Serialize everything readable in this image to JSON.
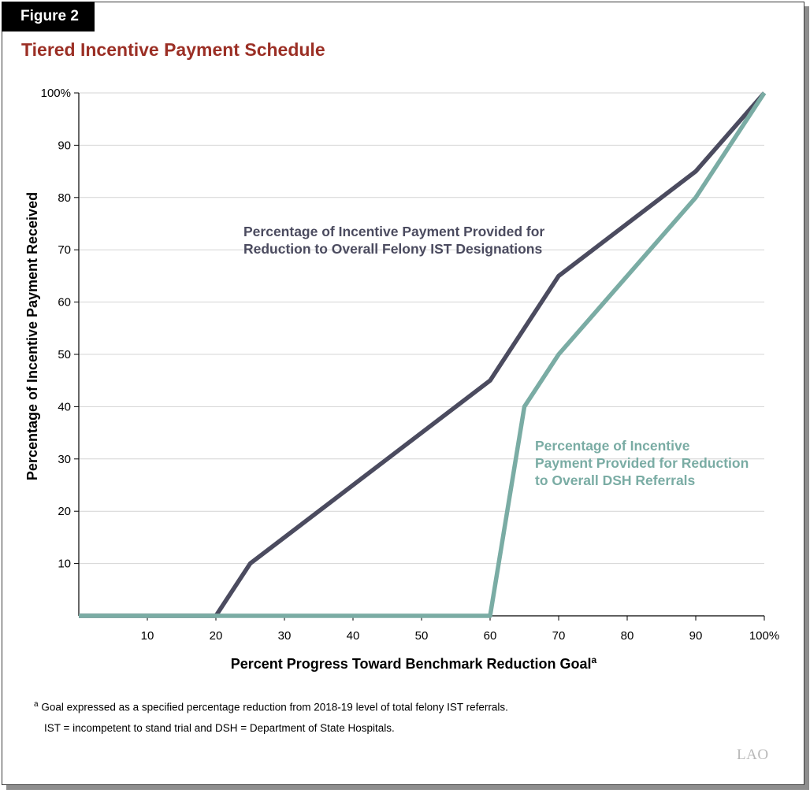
{
  "figure_label": "Figure 2",
  "chart_data": {
    "type": "line",
    "title": "Tiered Incentive Payment Schedule",
    "xlabel": "Percent Progress Toward Benchmark Reduction Goal",
    "xlabel_superscript": "a",
    "ylabel": "Percentage of Incentive Payment Received",
    "xlim": [
      0,
      100
    ],
    "ylim": [
      0,
      100
    ],
    "x_ticks": [
      10,
      20,
      30,
      40,
      50,
      60,
      70,
      80,
      90,
      100
    ],
    "x_tick_labels": [
      "10",
      "20",
      "30",
      "40",
      "50",
      "60",
      "70",
      "80",
      "90",
      "100%"
    ],
    "y_ticks": [
      10,
      20,
      30,
      40,
      50,
      60,
      70,
      80,
      90,
      100
    ],
    "y_tick_labels": [
      "10",
      "20",
      "30",
      "40",
      "50",
      "60",
      "70",
      "80",
      "90",
      "100%"
    ],
    "grid": true,
    "series": [
      {
        "name": "Percentage of Incentive Payment Provided for Reduction to Overall Felony IST Designations",
        "label_lines": [
          "Percentage of Incentive Payment Provided for",
          "Reduction to Overall Felony IST Designations"
        ],
        "color": "#4b4b5f",
        "x": [
          0,
          20,
          25,
          60,
          70,
          90,
          100
        ],
        "y": [
          0,
          0,
          10,
          45,
          65,
          85,
          100
        ]
      },
      {
        "name": "Percentage of Incentive Payment Provided for Reduction to Overall DSH Referrals",
        "label_lines": [
          "Percentage of Incentive",
          "Payment Provided for Reduction",
          "to Overall DSH Referrals"
        ],
        "color": "#7aaca4",
        "x": [
          0,
          60,
          65,
          70,
          90,
          100
        ],
        "y": [
          0,
          0,
          40,
          50,
          80,
          100
        ]
      }
    ]
  },
  "footnotes": {
    "a_marker": "a",
    "a_text": "Goal expressed as a specified percentage reduction from 2018-19 level of total felony IST referrals.",
    "abbrev": "IST = incompetent to stand trial and DSH = Department of State Hospitals."
  },
  "logo_text": "LAO"
}
